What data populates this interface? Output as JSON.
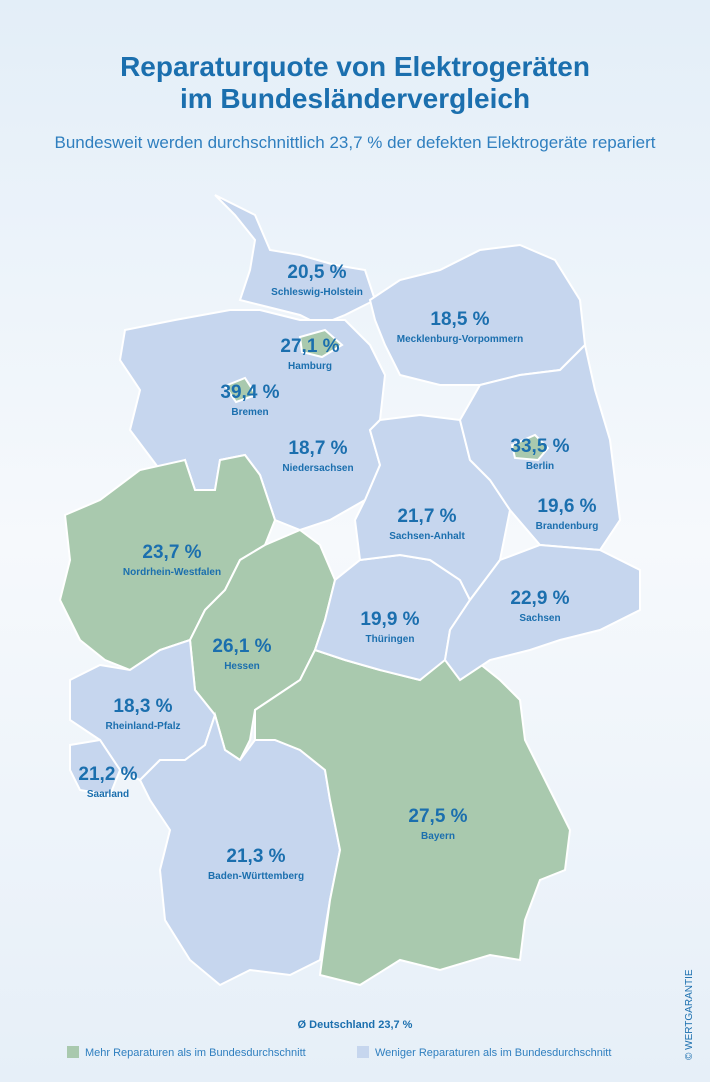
{
  "header": {
    "title_line1": "Reparaturquote von Elektrogeräten",
    "title_line2": "im Bundesländervergleich",
    "subtitle": "Bundesweit werden durchschnittlich 23,7 % der defekten Elektrogeräte repariert"
  },
  "legend": [
    {
      "label": "Mehr Reparaturen als im Bundesdurchschnitt",
      "color": "#a9c9ae"
    },
    {
      "label": "Weniger Reparaturen als im Bundesdurchschnitt",
      "color": "#c6d6ee"
    }
  ],
  "states": [
    {
      "name": "Schleswig-Holstein",
      "value": "20,5 %",
      "category": 1
    },
    {
      "name": "Mecklenburg-Vorpommern",
      "value": "18,5 %",
      "category": 1
    },
    {
      "name": "Niedersachsen",
      "value": "18,7 %",
      "category": 1
    },
    {
      "name": "Hamburg",
      "value": "27,1 %",
      "category": 0
    },
    {
      "name": "Bremen",
      "value": "39,4 %",
      "category": 0
    },
    {
      "name": "Nordrhein-Westfalen",
      "value": "23,7 %",
      "category": 0
    },
    {
      "name": "Hessen",
      "value": "26,1 %",
      "category": 0
    },
    {
      "name": "Rheinland-Pfalz",
      "value": "18,3 %",
      "category": 1
    },
    {
      "name": "Saarland",
      "value": "21,2 %",
      "category": 1
    },
    {
      "name": "Baden-Württemberg",
      "value": "21,3 %",
      "category": 1
    },
    {
      "name": "Bayern",
      "value": "27,5 %",
      "category": 0
    },
    {
      "name": "Thüringen",
      "value": "19,9 %",
      "category": 1
    },
    {
      "name": "Sachsen-Anhalt",
      "value": "21,7 %",
      "category": 1
    },
    {
      "name": "Brandenburg",
      "value": "19,6 %",
      "category": 1
    },
    {
      "name": "Berlin",
      "value": "33,5 %",
      "category": 0
    },
    {
      "name": "Sachsen",
      "value": "22,9 %",
      "category": 1
    }
  ],
  "footer": {
    "average": "Ø Deutschland 23,7 %",
    "copyright": "© WERTGARANTIE"
  }
}
